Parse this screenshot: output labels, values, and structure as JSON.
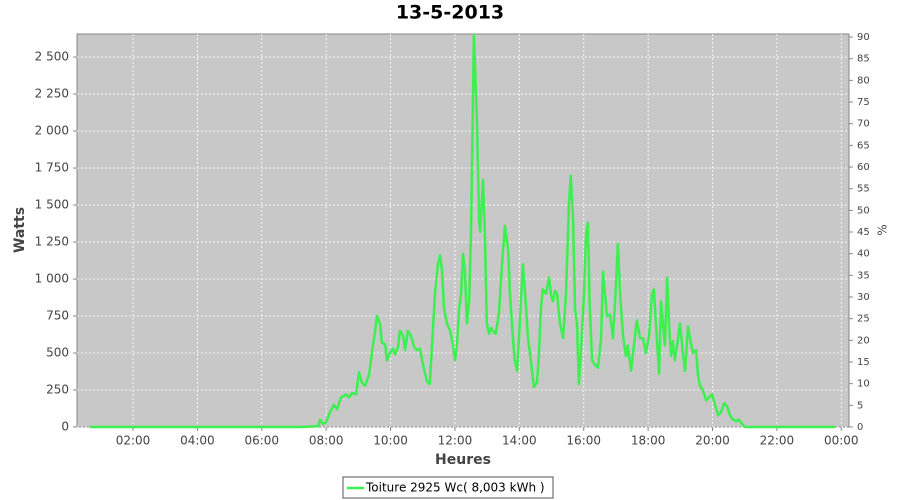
{
  "chart_data": {
    "type": "line",
    "title": "13-5-2013",
    "xlabel": "Heures",
    "ylabel": "Watts",
    "y2label": "%",
    "x": [
      0.66,
      7.19,
      7.75,
      7.81,
      7.9,
      7.99,
      8.12,
      8.24,
      8.34,
      8.46,
      8.62,
      8.71,
      8.8,
      8.93,
      9.02,
      9.11,
      9.21,
      9.33,
      9.42,
      9.52,
      9.58,
      9.67,
      9.73,
      9.83,
      9.89,
      9.98,
      10.08,
      10.14,
      10.23,
      10.29,
      10.39,
      10.45,
      10.54,
      10.63,
      10.73,
      10.82,
      10.91,
      11.01,
      11.13,
      11.22,
      11.29,
      11.38,
      11.47,
      11.54,
      11.6,
      11.66,
      11.75,
      11.85,
      11.94,
      12.0,
      12.06,
      12.13,
      12.19,
      12.25,
      12.31,
      12.37,
      12.44,
      12.5,
      12.59,
      12.68,
      12.75,
      12.78,
      12.87,
      12.93,
      12.99,
      13.06,
      13.12,
      13.21,
      13.27,
      13.37,
      13.46,
      13.55,
      13.65,
      13.71,
      13.8,
      13.86,
      13.93,
      13.99,
      14.05,
      14.11,
      14.18,
      14.27,
      14.36,
      14.45,
      14.55,
      14.61,
      14.67,
      14.73,
      14.83,
      14.92,
      14.98,
      15.04,
      15.11,
      15.17,
      15.26,
      15.36,
      15.45,
      15.54,
      15.6,
      15.67,
      15.73,
      15.79,
      15.85,
      15.91,
      16.01,
      16.07,
      16.13,
      16.19,
      16.26,
      16.35,
      16.44,
      16.54,
      16.6,
      16.66,
      16.72,
      16.82,
      16.91,
      17.0,
      17.06,
      17.13,
      17.22,
      17.31,
      17.37,
      17.47,
      17.56,
      17.65,
      17.75,
      17.84,
      17.93,
      18.03,
      18.12,
      18.18,
      18.27,
      18.34,
      18.4,
      18.46,
      18.52,
      18.59,
      18.65,
      18.71,
      18.77,
      18.83,
      18.9,
      18.99,
      19.08,
      19.15,
      19.24,
      19.3,
      19.39,
      19.49,
      19.55,
      19.61,
      19.7,
      19.8,
      19.89,
      19.98,
      20.08,
      20.17,
      20.26,
      20.36,
      20.45,
      20.54,
      20.64,
      20.73,
      20.82,
      20.92,
      21.01,
      21.47,
      23.8
    ],
    "series": [
      {
        "name": "Toiture 2925 Wc( 8,003 kWh )",
        "color": "#3cf050",
        "values": [
          0,
          0,
          5,
          50,
          20,
          30,
          100,
          150,
          120,
          200,
          220,
          200,
          230,
          220,
          370,
          300,
          280,
          350,
          500,
          650,
          750,
          700,
          570,
          560,
          450,
          500,
          530,
          490,
          540,
          650,
          620,
          520,
          650,
          620,
          540,
          520,
          530,
          420,
          310,
          290,
          560,
          900,
          1100,
          1160,
          1050,
          800,
          700,
          650,
          550,
          450,
          550,
          800,
          900,
          1170,
          1050,
          700,
          850,
          1300,
          2650,
          2100,
          1400,
          1320,
          1670,
          1300,
          700,
          630,
          670,
          640,
          630,
          780,
          1100,
          1360,
          1200,
          900,
          600,
          450,
          380,
          600,
          850,
          1100,
          900,
          600,
          450,
          270,
          300,
          500,
          800,
          930,
          900,
          1010,
          900,
          850,
          920,
          900,
          700,
          600,
          900,
          1500,
          1700,
          1400,
          800,
          700,
          290,
          500,
          900,
          1300,
          1380,
          800,
          450,
          420,
          400,
          600,
          1050,
          900,
          750,
          760,
          600,
          950,
          1240,
          900,
          620,
          480,
          550,
          380,
          550,
          720,
          600,
          600,
          500,
          620,
          900,
          930,
          600,
          360,
          850,
          700,
          550,
          1010,
          700,
          480,
          580,
          450,
          550,
          700,
          500,
          380,
          680,
          600,
          500,
          520,
          350,
          280,
          250,
          180,
          200,
          220,
          150,
          80,
          100,
          160,
          140,
          80,
          50,
          40,
          50,
          20,
          0,
          0,
          0
        ]
      }
    ],
    "xlim": [
      0.26,
      24.24
    ],
    "xticks": [
      {
        "value": 2,
        "label": "02:00"
      },
      {
        "value": 4,
        "label": "04:00"
      },
      {
        "value": 6,
        "label": "06:00"
      },
      {
        "value": 8,
        "label": "08:00"
      },
      {
        "value": 10,
        "label": "10:00"
      },
      {
        "value": 12,
        "label": "12:00"
      },
      {
        "value": 14,
        "label": "14:00"
      },
      {
        "value": 16,
        "label": "16:00"
      },
      {
        "value": 18,
        "label": "18:00"
      },
      {
        "value": 20,
        "label": "20:00"
      },
      {
        "value": 22,
        "label": "22:00"
      },
      {
        "value": 24,
        "label": "00:00"
      }
    ],
    "ylim": [
      0,
      2656
    ],
    "yticks": [
      0,
      250,
      500,
      750,
      {
        "value": 1000,
        "label": "1 000"
      },
      {
        "value": 1250,
        "label": "1 250"
      },
      {
        "value": 1500,
        "label": "1 500"
      },
      {
        "value": 1750,
        "label": "1 750"
      },
      {
        "value": 2000,
        "label": "2 000"
      },
      {
        "value": 2250,
        "label": "2 250"
      },
      {
        "value": 2500,
        "label": "2 500"
      }
    ],
    "y2lim": [
      0,
      90.7
    ],
    "y2ticks": [
      0,
      5,
      10,
      15,
      20,
      25,
      30,
      35,
      40,
      45,
      50,
      55,
      60,
      65,
      70,
      75,
      80,
      85,
      90
    ],
    "grid": true
  }
}
